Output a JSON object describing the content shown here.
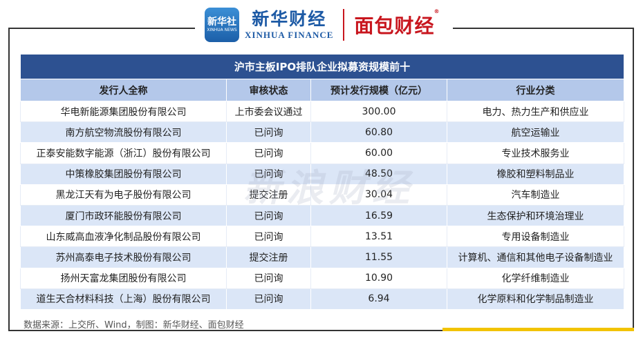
{
  "header": {
    "xinhua_badge_cn": "新华社",
    "xinhua_badge_en": "XINHUA NEWS",
    "xinhua_finance_cn": "新华财经",
    "xinhua_finance_en": "XINHUA FINANCE",
    "mianbao_logo": "面包财经",
    "registered_mark": "®"
  },
  "table": {
    "title": "沪市主板IPO排队企业拟募资规模前十",
    "columns": [
      "发行人全称",
      "审核状态",
      "预计发行规模（亿元）",
      "行业分类"
    ],
    "rows": [
      [
        "华电新能源集团股份有限公司",
        "上市委会议通过",
        "300.00",
        "电力、热力生产和供应业"
      ],
      [
        "南方航空物流股份有限公司",
        "已问询",
        "60.80",
        "航空运输业"
      ],
      [
        "正泰安能数字能源（浙江）股份有限公司",
        "已问询",
        "60.00",
        "专业技术服务业"
      ],
      [
        "中策橡胶集团股份有限公司",
        "已问询",
        "48.50",
        "橡胶和塑料制品业"
      ],
      [
        "黑龙江天有为电子股份有限公司",
        "提交注册",
        "30.04",
        "汽车制造业"
      ],
      [
        "厦门市政环能股份有限公司",
        "已问询",
        "16.59",
        "生态保护和环境治理业"
      ],
      [
        "山东威高血液净化制品股份有限公司",
        "已问询",
        "13.51",
        "专用设备制造业"
      ],
      [
        "苏州高泰电子技术股份有限公司",
        "提交注册",
        "11.55",
        "计算机、通信和其他电子设备制造业"
      ],
      [
        "扬州天富龙集团股份有限公司",
        "已问询",
        "10.90",
        "化学纤维制造业"
      ],
      [
        "道生天合材料科技（上海）股份有限公司",
        "已问询",
        "6.94",
        "化学原料和化学制品制造业"
      ]
    ]
  },
  "watermark": "新浪财经",
  "source": "数据来源：上交所、Wind，制图：新华财经、面包财经",
  "colors": {
    "title_bg": "#2d5191",
    "header_bg": "#b4c8ea",
    "stripe_bg": "#dbe6f7",
    "accent_red": "#c8161e",
    "accent_yellow": "#f2c300"
  }
}
